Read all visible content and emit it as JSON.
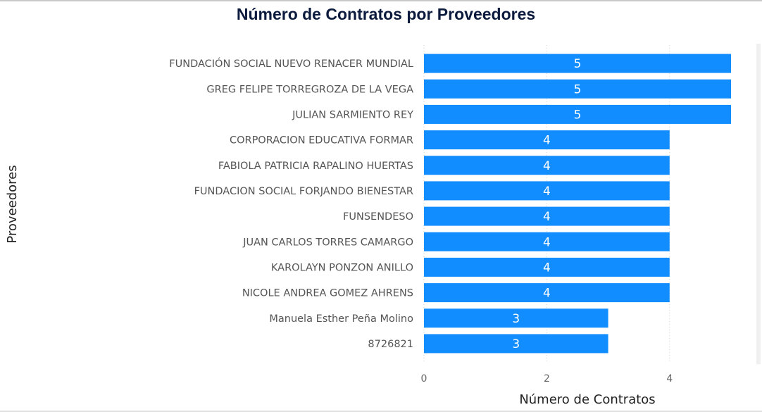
{
  "chart_data": {
    "type": "bar",
    "orientation": "horizontal",
    "title": "Número de Contratos por Proveedores",
    "x_label": "Número de Contratos",
    "y_label": "Proveedores",
    "categories": [
      "FUNDACIÓN SOCIAL NUEVO RENACER MUNDIAL",
      "GREG FELIPE TORREGROZA DE LA VEGA",
      "JULIAN SARMIENTO REY",
      "CORPORACION EDUCATIVA FORMAR",
      "FABIOLA PATRICIA RAPALINO HUERTAS",
      "FUNDACION SOCIAL FORJANDO BIENESTAR",
      "FUNSENDESO",
      "JUAN CARLOS TORRES CAMARGO",
      "KAROLAYN PONZON ANILLO",
      "NICOLE ANDREA GOMEZ AHRENS",
      "Manuela Esther Peña Molino",
      "8726821"
    ],
    "values": [
      5,
      5,
      5,
      4,
      4,
      4,
      4,
      4,
      4,
      4,
      3,
      3
    ],
    "color": "#118dff",
    "xlim": [
      0,
      5
    ],
    "xticks": [
      0,
      2,
      4
    ],
    "grid": true
  }
}
